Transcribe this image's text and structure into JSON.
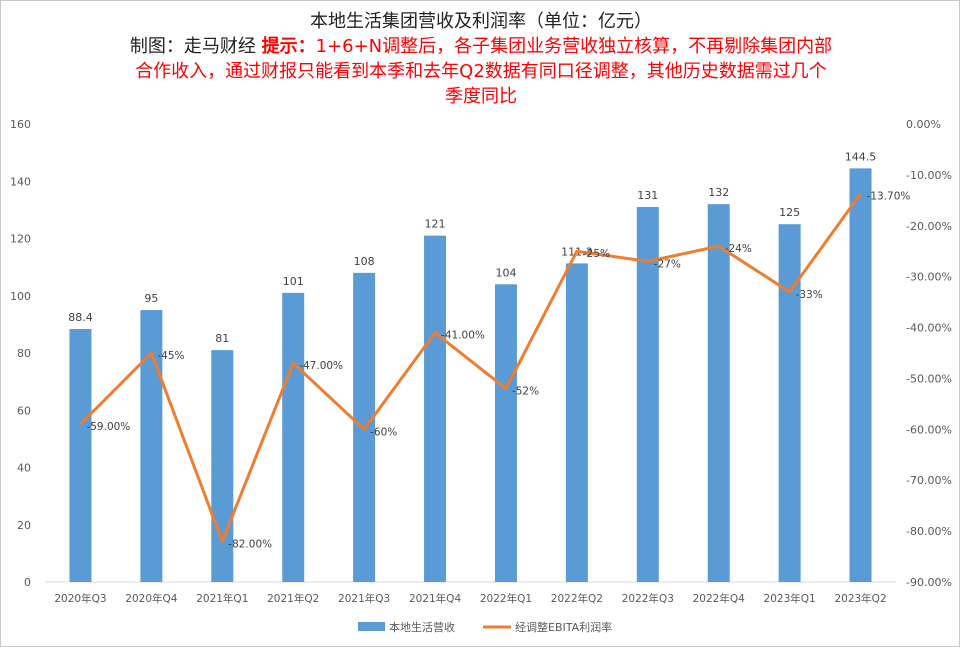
{
  "chart_data": {
    "type": "bar",
    "title": "本地生活集团营收及利润率（单位：亿元）",
    "subtitle": {
      "maker": "制图：走马财经",
      "note_label": "提示：",
      "note_lines": [
        "1+6+N调整后，各子集团业务营收独立核算，不再剔除集团内部",
        "合作收入，通过财报只能看到本季和去年Q2数据有同口径调整，其他历史数据需过几个",
        "季度同比"
      ]
    },
    "categories": [
      "2020年Q3",
      "2020年Q4",
      "2021年Q1",
      "2021年Q2",
      "2021年Q3",
      "2021年Q4",
      "2022年Q1",
      "2022年Q2",
      "2022年Q3",
      "2022年Q4",
      "2023年Q1",
      "2023年Q2"
    ],
    "series": [
      {
        "name": "本地生活营收",
        "type": "bar",
        "axis": "left",
        "color": "#5b9bd5",
        "values": [
          88.4,
          95,
          81,
          101,
          108,
          121,
          104,
          111.3,
          131,
          132,
          125,
          144.5
        ],
        "labels": [
          "88.4",
          "95",
          "81",
          "101",
          "108",
          "121",
          "104",
          "111.3",
          "131",
          "132",
          "125",
          "144.5"
        ]
      },
      {
        "name": "经调整EBITA利润率",
        "type": "line",
        "axis": "right",
        "color": "#ed7d31",
        "values": [
          -59,
          -45,
          -82,
          -47,
          -60,
          -41,
          -52,
          -25,
          -27,
          -24,
          -33,
          -13.7
        ],
        "labels": [
          "-59.00%",
          "-45%",
          "-82.00%",
          "-47.00%",
          "-60%",
          "-41.00%",
          "-52%",
          "-25%",
          "-27%",
          "-24%",
          "-33%",
          "-13.70%"
        ]
      }
    ],
    "y_left": {
      "range": [
        0,
        160
      ],
      "ticks": [
        "0",
        "20",
        "40",
        "60",
        "80",
        "100",
        "120",
        "140",
        "160"
      ]
    },
    "y_right": {
      "range": [
        -90,
        0
      ],
      "ticks": [
        "0.00%",
        "-10.00%",
        "-20.00%",
        "-30.00%",
        "-40.00%",
        "-50.00%",
        "-60.00%",
        "-70.00%",
        "-80.00%",
        "-90.00%"
      ]
    },
    "grid": false,
    "legend_position": "bottom"
  }
}
